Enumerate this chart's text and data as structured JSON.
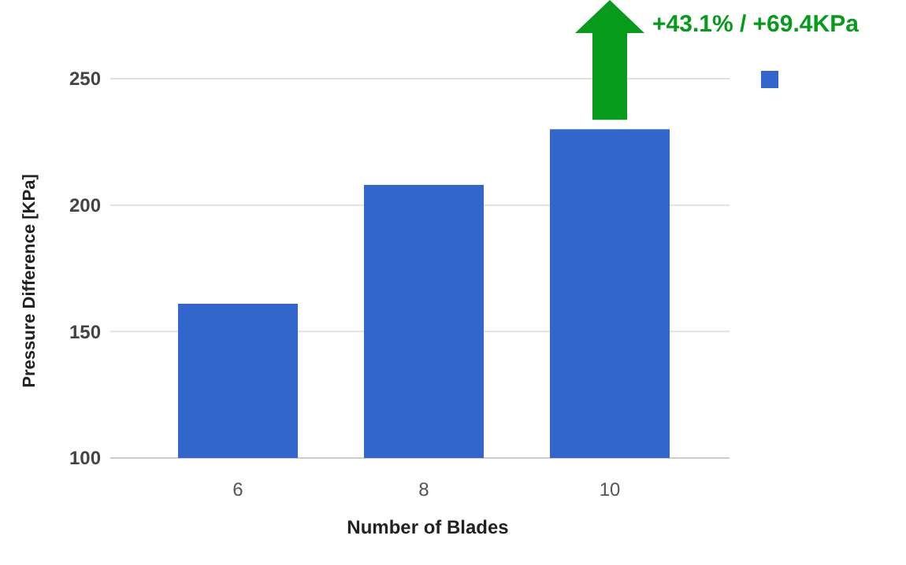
{
  "chart_data": {
    "type": "bar",
    "xlabel": "Number of Blades",
    "ylabel": "Pressure Difference [KPa]",
    "categories": [
      "6",
      "8",
      "10"
    ],
    "series": [
      {
        "color": "#3366cc",
        "values": [
          161,
          208,
          230
        ]
      }
    ],
    "ylim": [
      100,
      250
    ],
    "yticks": [
      100,
      150,
      200,
      250
    ],
    "grid": "y",
    "annotations": [
      "+43.1% / +69.4KPa"
    ]
  }
}
